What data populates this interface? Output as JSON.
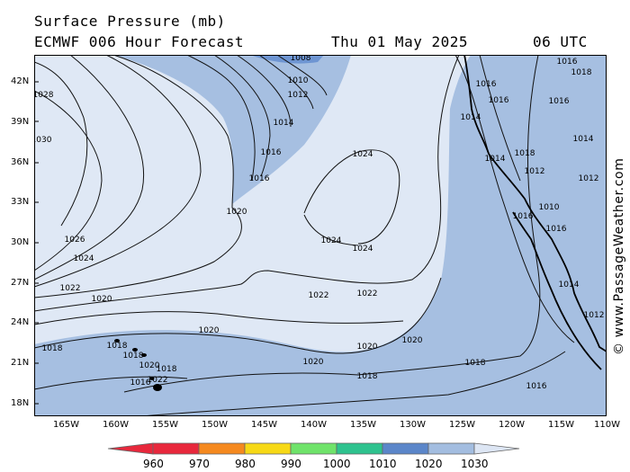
{
  "title": {
    "line1": "Surface Pressure (mb)",
    "model": "ECMWF 006 Hour Forecast",
    "date": "Thu 01 May 2025",
    "time": "06 UTC"
  },
  "watermark": "© www.PassageWeather.com",
  "axes": {
    "lat_labels": [
      "42N",
      "39N",
      "36N",
      "33N",
      "30N",
      "27N",
      "24N",
      "21N",
      "18N"
    ],
    "lon_labels": [
      "165W",
      "160W",
      "155W",
      "150W",
      "145W",
      "140W",
      "135W",
      "130W",
      "125W",
      "120W",
      "115W",
      "110W"
    ]
  },
  "isobar_labels": [
    {
      "text": "1008"
    },
    {
      "text": "1010"
    },
    {
      "text": "1012"
    },
    {
      "text": "1014"
    },
    {
      "text": "1016"
    },
    {
      "text": "1016"
    },
    {
      "text": "1020"
    },
    {
      "text": "1024"
    },
    {
      "text": "1024"
    },
    {
      "text": "1024"
    },
    {
      "text": "1026"
    },
    {
      "text": "1024"
    },
    {
      "text": "1022"
    },
    {
      "text": "1022"
    },
    {
      "text": "1022"
    },
    {
      "text": "1020"
    },
    {
      "text": "1020"
    },
    {
      "text": "1020"
    },
    {
      "text": "1020"
    },
    {
      "text": "1020"
    },
    {
      "text": "1018"
    },
    {
      "text": "1018"
    },
    {
      "text": "1018"
    },
    {
      "text": "1018"
    },
    {
      "text": "1022"
    },
    {
      "text": "1020"
    },
    {
      "text": "1016"
    },
    {
      "text": "1018"
    },
    {
      "text": "1018"
    },
    {
      "text": "1016"
    },
    {
      "text": "1028"
    },
    {
      "text": "1030"
    },
    {
      "text": "1014"
    },
    {
      "text": "1016"
    },
    {
      "text": "1014"
    },
    {
      "text": "1016"
    },
    {
      "text": "1018"
    },
    {
      "text": "1016"
    },
    {
      "text": "1016"
    },
    {
      "text": "1014"
    },
    {
      "text": "1012"
    },
    {
      "text": "1012"
    },
    {
      "text": "1014"
    },
    {
      "text": "1016"
    },
    {
      "text": "1018"
    },
    {
      "text": "1016"
    },
    {
      "text": "1010"
    },
    {
      "text": "1012"
    }
  ],
  "legend": {
    "ticks": [
      "960",
      "970",
      "980",
      "990",
      "1000",
      "1010",
      "1020",
      "1030"
    ],
    "colors": [
      "#e8283c",
      "#f5891f",
      "#f7d916",
      "#6fe36a",
      "#2ec28e",
      "#5b86c9",
      "#a3bde0",
      "#dde6f4"
    ]
  },
  "colors": {
    "fill_1010": "#6e95d2",
    "fill_1020": "#a6bfe1",
    "fill_1030": "#dfe8f5"
  }
}
